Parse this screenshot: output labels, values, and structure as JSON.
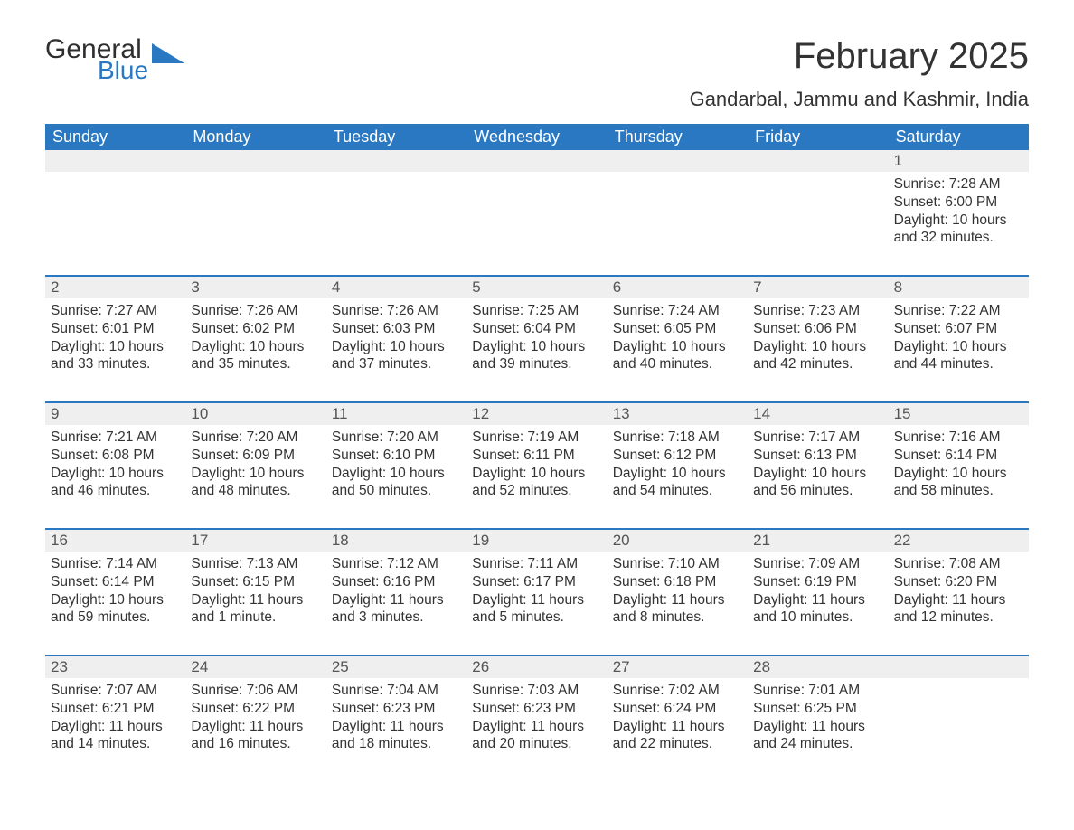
{
  "logo": {
    "general": "General",
    "blue": "Blue",
    "wedge_color": "#2a78c2"
  },
  "title": "February 2025",
  "location": "Gandarbal, Jammu and Kashmir, India",
  "colors": {
    "header_bg": "#2a78c2",
    "header_text": "#ffffff",
    "daynum_bg": "#efefef",
    "body_text": "#333333",
    "rule": "#2a78c2"
  },
  "weekdays": [
    "Sunday",
    "Monday",
    "Tuesday",
    "Wednesday",
    "Thursday",
    "Friday",
    "Saturday"
  ],
  "weeks": [
    [
      null,
      null,
      null,
      null,
      null,
      null,
      {
        "n": "1",
        "sunrise": "Sunrise: 7:28 AM",
        "sunset": "Sunset: 6:00 PM",
        "d1": "Daylight: 10 hours",
        "d2": "and 32 minutes."
      }
    ],
    [
      {
        "n": "2",
        "sunrise": "Sunrise: 7:27 AM",
        "sunset": "Sunset: 6:01 PM",
        "d1": "Daylight: 10 hours",
        "d2": "and 33 minutes."
      },
      {
        "n": "3",
        "sunrise": "Sunrise: 7:26 AM",
        "sunset": "Sunset: 6:02 PM",
        "d1": "Daylight: 10 hours",
        "d2": "and 35 minutes."
      },
      {
        "n": "4",
        "sunrise": "Sunrise: 7:26 AM",
        "sunset": "Sunset: 6:03 PM",
        "d1": "Daylight: 10 hours",
        "d2": "and 37 minutes."
      },
      {
        "n": "5",
        "sunrise": "Sunrise: 7:25 AM",
        "sunset": "Sunset: 6:04 PM",
        "d1": "Daylight: 10 hours",
        "d2": "and 39 minutes."
      },
      {
        "n": "6",
        "sunrise": "Sunrise: 7:24 AM",
        "sunset": "Sunset: 6:05 PM",
        "d1": "Daylight: 10 hours",
        "d2": "and 40 minutes."
      },
      {
        "n": "7",
        "sunrise": "Sunrise: 7:23 AM",
        "sunset": "Sunset: 6:06 PM",
        "d1": "Daylight: 10 hours",
        "d2": "and 42 minutes."
      },
      {
        "n": "8",
        "sunrise": "Sunrise: 7:22 AM",
        "sunset": "Sunset: 6:07 PM",
        "d1": "Daylight: 10 hours",
        "d2": "and 44 minutes."
      }
    ],
    [
      {
        "n": "9",
        "sunrise": "Sunrise: 7:21 AM",
        "sunset": "Sunset: 6:08 PM",
        "d1": "Daylight: 10 hours",
        "d2": "and 46 minutes."
      },
      {
        "n": "10",
        "sunrise": "Sunrise: 7:20 AM",
        "sunset": "Sunset: 6:09 PM",
        "d1": "Daylight: 10 hours",
        "d2": "and 48 minutes."
      },
      {
        "n": "11",
        "sunrise": "Sunrise: 7:20 AM",
        "sunset": "Sunset: 6:10 PM",
        "d1": "Daylight: 10 hours",
        "d2": "and 50 minutes."
      },
      {
        "n": "12",
        "sunrise": "Sunrise: 7:19 AM",
        "sunset": "Sunset: 6:11 PM",
        "d1": "Daylight: 10 hours",
        "d2": "and 52 minutes."
      },
      {
        "n": "13",
        "sunrise": "Sunrise: 7:18 AM",
        "sunset": "Sunset: 6:12 PM",
        "d1": "Daylight: 10 hours",
        "d2": "and 54 minutes."
      },
      {
        "n": "14",
        "sunrise": "Sunrise: 7:17 AM",
        "sunset": "Sunset: 6:13 PM",
        "d1": "Daylight: 10 hours",
        "d2": "and 56 minutes."
      },
      {
        "n": "15",
        "sunrise": "Sunrise: 7:16 AM",
        "sunset": "Sunset: 6:14 PM",
        "d1": "Daylight: 10 hours",
        "d2": "and 58 minutes."
      }
    ],
    [
      {
        "n": "16",
        "sunrise": "Sunrise: 7:14 AM",
        "sunset": "Sunset: 6:14 PM",
        "d1": "Daylight: 10 hours",
        "d2": "and 59 minutes."
      },
      {
        "n": "17",
        "sunrise": "Sunrise: 7:13 AM",
        "sunset": "Sunset: 6:15 PM",
        "d1": "Daylight: 11 hours",
        "d2": "and 1 minute."
      },
      {
        "n": "18",
        "sunrise": "Sunrise: 7:12 AM",
        "sunset": "Sunset: 6:16 PM",
        "d1": "Daylight: 11 hours",
        "d2": "and 3 minutes."
      },
      {
        "n": "19",
        "sunrise": "Sunrise: 7:11 AM",
        "sunset": "Sunset: 6:17 PM",
        "d1": "Daylight: 11 hours",
        "d2": "and 5 minutes."
      },
      {
        "n": "20",
        "sunrise": "Sunrise: 7:10 AM",
        "sunset": "Sunset: 6:18 PM",
        "d1": "Daylight: 11 hours",
        "d2": "and 8 minutes."
      },
      {
        "n": "21",
        "sunrise": "Sunrise: 7:09 AM",
        "sunset": "Sunset: 6:19 PM",
        "d1": "Daylight: 11 hours",
        "d2": "and 10 minutes."
      },
      {
        "n": "22",
        "sunrise": "Sunrise: 7:08 AM",
        "sunset": "Sunset: 6:20 PM",
        "d1": "Daylight: 11 hours",
        "d2": "and 12 minutes."
      }
    ],
    [
      {
        "n": "23",
        "sunrise": "Sunrise: 7:07 AM",
        "sunset": "Sunset: 6:21 PM",
        "d1": "Daylight: 11 hours",
        "d2": "and 14 minutes."
      },
      {
        "n": "24",
        "sunrise": "Sunrise: 7:06 AM",
        "sunset": "Sunset: 6:22 PM",
        "d1": "Daylight: 11 hours",
        "d2": "and 16 minutes."
      },
      {
        "n": "25",
        "sunrise": "Sunrise: 7:04 AM",
        "sunset": "Sunset: 6:23 PM",
        "d1": "Daylight: 11 hours",
        "d2": "and 18 minutes."
      },
      {
        "n": "26",
        "sunrise": "Sunrise: 7:03 AM",
        "sunset": "Sunset: 6:23 PM",
        "d1": "Daylight: 11 hours",
        "d2": "and 20 minutes."
      },
      {
        "n": "27",
        "sunrise": "Sunrise: 7:02 AM",
        "sunset": "Sunset: 6:24 PM",
        "d1": "Daylight: 11 hours",
        "d2": "and 22 minutes."
      },
      {
        "n": "28",
        "sunrise": "Sunrise: 7:01 AM",
        "sunset": "Sunset: 6:25 PM",
        "d1": "Daylight: 11 hours",
        "d2": "and 24 minutes."
      },
      null
    ]
  ]
}
